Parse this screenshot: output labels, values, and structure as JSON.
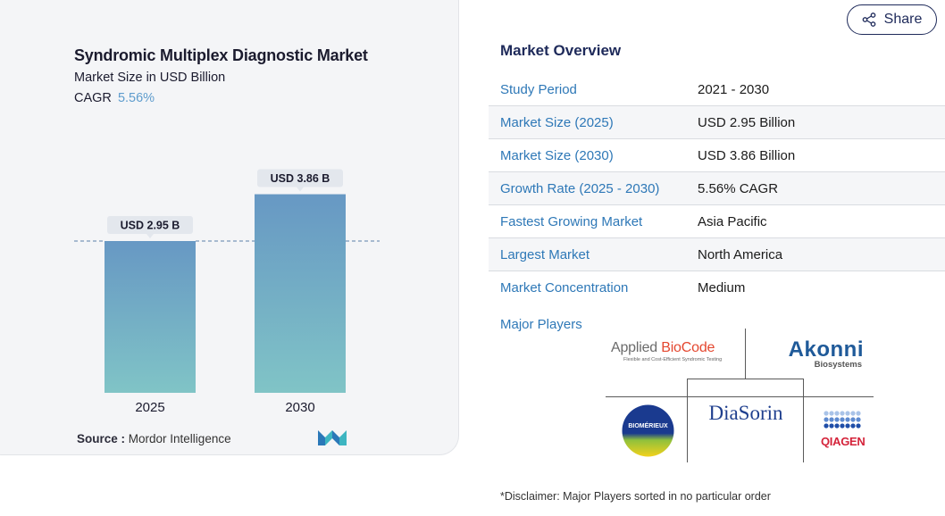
{
  "chart_data": {
    "type": "bar",
    "title": "Syndromic Multiplex Diagnostic Market",
    "subtitle": "Market Size in USD Billion",
    "cagr_label": "CAGR",
    "cagr_value": "5.56%",
    "categories": [
      "2025",
      "2030"
    ],
    "values": [
      2.95,
      3.86
    ],
    "data_labels": [
      "USD 2.95 B",
      "USD 3.86 B"
    ],
    "ylim": [
      0,
      4.2
    ],
    "reference_line": 2.95,
    "colors": {
      "bar_top": "#6798c4",
      "bar_bottom": "#80c4c6",
      "label_bg": "#e3e7ed"
    }
  },
  "source": {
    "label": "Source :",
    "value": "Mordor Intelligence"
  },
  "share": {
    "label": "Share",
    "icon": "share-icon"
  },
  "overview": {
    "title": "Market Overview",
    "rows": [
      {
        "label": "Study Period",
        "value": "2021 - 2030"
      },
      {
        "label": "Market Size (2025)",
        "value": "USD 2.95 Billion"
      },
      {
        "label": "Market Size (2030)",
        "value": "USD 3.86 Billion"
      },
      {
        "label": "Growth Rate (2025 - 2030)",
        "value": "5.56% CAGR"
      },
      {
        "label": "Fastest Growing Market",
        "value": "Asia Pacific"
      },
      {
        "label": "Largest Market",
        "value": "North America"
      },
      {
        "label": "Market Concentration",
        "value": "Medium"
      }
    ]
  },
  "major_players": {
    "title": "Major Players",
    "applied_biocode": {
      "word1": "Applied ",
      "word2": "BioCode",
      "tagline": "Flexible and Cost-Efficient Syndromic Testing"
    },
    "akonni": {
      "name": "Akonni",
      "sub": "Biosystems"
    },
    "diasorin": {
      "name": "DiaSorin"
    },
    "biomerieux": {
      "name": "BIOMÉRIEUX"
    },
    "qiagen": {
      "name": "QIAGEN"
    }
  },
  "disclaimer": "*Disclaimer: Major Players sorted in no particular order"
}
